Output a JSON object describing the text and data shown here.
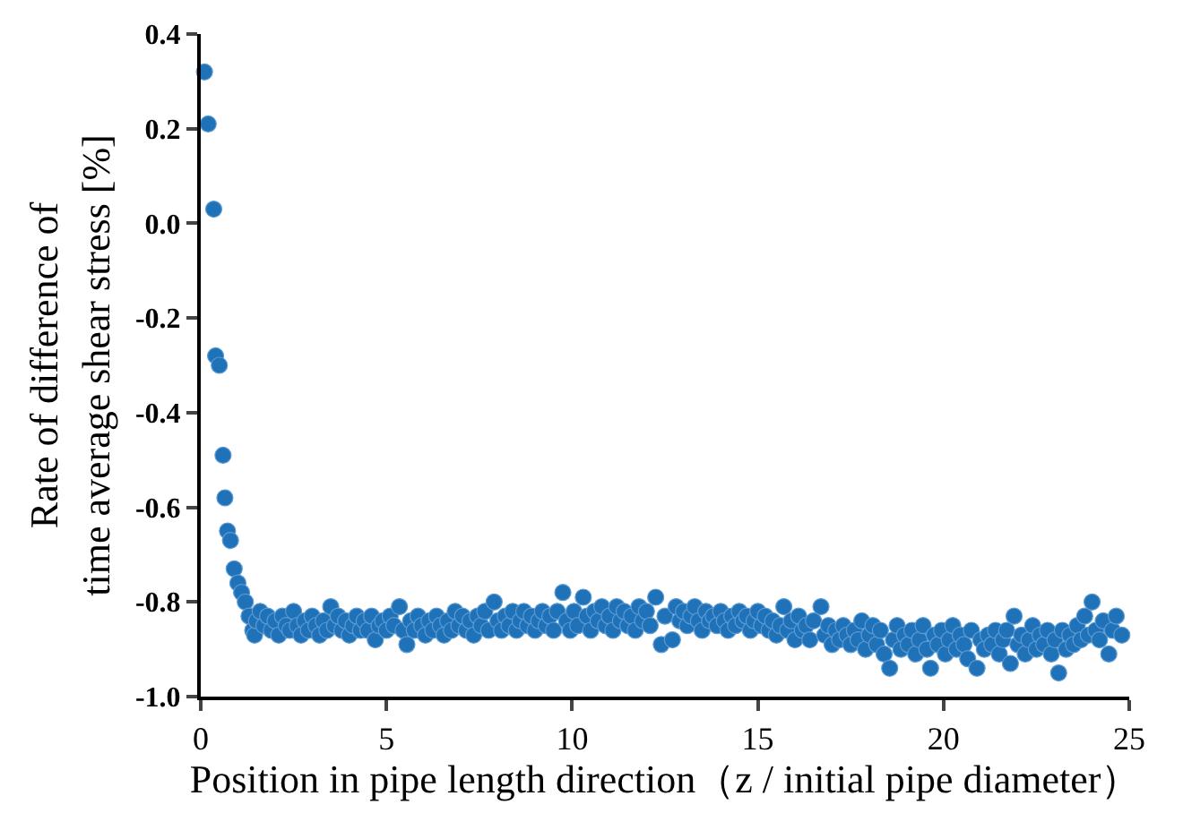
{
  "chart_data": {
    "type": "scatter",
    "xlabel": "Position in pipe length direction（z / initial pipe diameter）",
    "ylabel": "Rate of difference of\ntime average shear stress [%]",
    "xlim": [
      0,
      25
    ],
    "xticks": [
      0,
      5,
      10,
      15,
      20,
      25
    ],
    "ylim": [
      -1.0,
      0.4
    ],
    "yticks": [
      {
        "value": 0.4,
        "label": "0.4"
      },
      {
        "value": 0.2,
        "label": "0.2"
      },
      {
        "value": 0,
        "label": "0.0"
      },
      {
        "value": -0.2,
        "label": "-0.2"
      },
      {
        "value": -0.4,
        "label": "-0.4"
      },
      {
        "value": -0.6,
        "label": "-0.6"
      },
      {
        "value": -0.8,
        "label": "-0.8"
      },
      {
        "value": -1.0,
        "label": "-1.0"
      }
    ],
    "marker": "circle",
    "series": [
      {
        "color": "#1f72b8",
        "x": [
          0.1,
          0.2,
          0.35,
          0.4,
          0.5,
          0.6,
          0.65,
          0.72,
          0.8,
          0.9,
          1.0,
          1.1,
          1.2,
          1.3,
          1.4,
          1.45,
          1.5,
          1.6,
          1.7,
          1.8,
          1.9,
          2.0,
          2.1,
          2.2,
          2.3,
          2.4,
          2.5,
          2.6,
          2.7,
          2.8,
          2.9,
          3.0,
          3.1,
          3.2,
          3.3,
          3.4,
          3.5,
          3.6,
          3.7,
          3.8,
          3.9,
          4.0,
          4.1,
          4.2,
          4.3,
          4.4,
          4.5,
          4.6,
          4.7,
          4.8,
          4.9,
          5.0,
          5.1,
          5.2,
          5.35,
          5.45,
          5.55,
          5.65,
          5.75,
          5.85,
          5.95,
          6.05,
          6.15,
          6.25,
          6.35,
          6.45,
          6.55,
          6.65,
          6.75,
          6.85,
          6.95,
          7.05,
          7.15,
          7.25,
          7.35,
          7.45,
          7.55,
          7.65,
          7.75,
          7.9,
          8.0,
          8.1,
          8.2,
          8.3,
          8.4,
          8.5,
          8.6,
          8.7,
          8.8,
          8.9,
          9.0,
          9.1,
          9.2,
          9.3,
          9.4,
          9.5,
          9.6,
          9.75,
          9.85,
          9.95,
          10.05,
          10.15,
          10.3,
          10.4,
          10.5,
          10.6,
          10.7,
          10.8,
          10.9,
          11.0,
          11.1,
          11.2,
          11.3,
          11.4,
          11.5,
          11.6,
          11.7,
          11.8,
          11.9,
          12.0,
          12.1,
          12.25,
          12.4,
          12.5,
          12.7,
          12.8,
          12.9,
          13.0,
          13.1,
          13.2,
          13.3,
          13.4,
          13.5,
          13.6,
          13.7,
          13.8,
          13.9,
          14.0,
          14.1,
          14.2,
          14.3,
          14.4,
          14.5,
          14.6,
          14.7,
          14.8,
          14.9,
          15.0,
          15.1,
          15.2,
          15.3,
          15.4,
          15.5,
          15.6,
          15.7,
          15.8,
          15.9,
          16.0,
          16.1,
          16.2,
          16.3,
          16.4,
          16.5,
          16.7,
          16.8,
          16.9,
          17.0,
          17.1,
          17.2,
          17.3,
          17.4,
          17.5,
          17.6,
          17.7,
          17.8,
          17.9,
          18.0,
          18.1,
          18.2,
          18.3,
          18.4,
          18.55,
          18.65,
          18.75,
          18.85,
          18.95,
          19.05,
          19.15,
          19.25,
          19.35,
          19.45,
          19.55,
          19.65,
          19.75,
          19.85,
          19.95,
          20.05,
          20.15,
          20.25,
          20.35,
          20.45,
          20.55,
          20.65,
          20.75,
          20.9,
          21.0,
          21.1,
          21.2,
          21.3,
          21.4,
          21.5,
          21.6,
          21.7,
          21.8,
          21.9,
          22.0,
          22.1,
          22.2,
          22.3,
          22.4,
          22.5,
          22.6,
          22.7,
          22.8,
          22.9,
          23.0,
          23.1,
          23.2,
          23.3,
          23.4,
          23.5,
          23.6,
          23.7,
          23.8,
          23.9,
          24.0,
          24.1,
          24.2,
          24.3,
          24.45,
          24.55,
          24.65,
          24.8
        ],
        "values": [
          0.32,
          0.21,
          0.03,
          -0.28,
          -0.3,
          -0.49,
          -0.58,
          -0.65,
          -0.67,
          -0.73,
          -0.76,
          -0.78,
          -0.8,
          -0.83,
          -0.86,
          -0.87,
          -0.84,
          -0.82,
          -0.85,
          -0.83,
          -0.86,
          -0.84,
          -0.87,
          -0.83,
          -0.85,
          -0.86,
          -0.82,
          -0.85,
          -0.87,
          -0.84,
          -0.86,
          -0.83,
          -0.85,
          -0.87,
          -0.84,
          -0.86,
          -0.81,
          -0.85,
          -0.83,
          -0.86,
          -0.84,
          -0.87,
          -0.85,
          -0.83,
          -0.86,
          -0.84,
          -0.86,
          -0.83,
          -0.88,
          -0.85,
          -0.84,
          -0.86,
          -0.83,
          -0.85,
          -0.81,
          -0.86,
          -0.89,
          -0.84,
          -0.86,
          -0.83,
          -0.85,
          -0.87,
          -0.84,
          -0.86,
          -0.83,
          -0.85,
          -0.87,
          -0.84,
          -0.86,
          -0.82,
          -0.85,
          -0.83,
          -0.86,
          -0.84,
          -0.87,
          -0.83,
          -0.85,
          -0.82,
          -0.86,
          -0.8,
          -0.84,
          -0.86,
          -0.83,
          -0.85,
          -0.82,
          -0.86,
          -0.84,
          -0.82,
          -0.85,
          -0.83,
          -0.86,
          -0.84,
          -0.82,
          -0.85,
          -0.83,
          -0.86,
          -0.82,
          -0.78,
          -0.84,
          -0.86,
          -0.82,
          -0.85,
          -0.79,
          -0.83,
          -0.86,
          -0.82,
          -0.84,
          -0.81,
          -0.85,
          -0.83,
          -0.86,
          -0.81,
          -0.84,
          -0.82,
          -0.85,
          -0.83,
          -0.86,
          -0.81,
          -0.84,
          -0.82,
          -0.85,
          -0.79,
          -0.89,
          -0.83,
          -0.88,
          -0.81,
          -0.84,
          -0.82,
          -0.85,
          -0.83,
          -0.81,
          -0.84,
          -0.86,
          -0.82,
          -0.84,
          -0.83,
          -0.85,
          -0.82,
          -0.84,
          -0.86,
          -0.83,
          -0.85,
          -0.82,
          -0.84,
          -0.83,
          -0.86,
          -0.84,
          -0.82,
          -0.85,
          -0.83,
          -0.86,
          -0.84,
          -0.87,
          -0.85,
          -0.81,
          -0.86,
          -0.84,
          -0.88,
          -0.83,
          -0.86,
          -0.85,
          -0.88,
          -0.84,
          -0.81,
          -0.87,
          -0.85,
          -0.89,
          -0.86,
          -0.88,
          -0.85,
          -0.87,
          -0.89,
          -0.86,
          -0.88,
          -0.84,
          -0.9,
          -0.87,
          -0.85,
          -0.89,
          -0.86,
          -0.91,
          -0.94,
          -0.88,
          -0.85,
          -0.9,
          -0.87,
          -0.89,
          -0.86,
          -0.91,
          -0.88,
          -0.85,
          -0.9,
          -0.94,
          -0.87,
          -0.89,
          -0.86,
          -0.91,
          -0.88,
          -0.85,
          -0.9,
          -0.87,
          -0.89,
          -0.92,
          -0.86,
          -0.94,
          -0.88,
          -0.9,
          -0.87,
          -0.89,
          -0.86,
          -0.91,
          -0.88,
          -0.86,
          -0.93,
          -0.83,
          -0.89,
          -0.87,
          -0.91,
          -0.88,
          -0.85,
          -0.9,
          -0.87,
          -0.89,
          -0.86,
          -0.91,
          -0.88,
          -0.95,
          -0.86,
          -0.9,
          -0.87,
          -0.89,
          -0.85,
          -0.88,
          -0.83,
          -0.87,
          -0.8,
          -0.86,
          -0.88,
          -0.84,
          -0.91,
          -0.86,
          -0.83,
          -0.87
        ]
      }
    ]
  }
}
